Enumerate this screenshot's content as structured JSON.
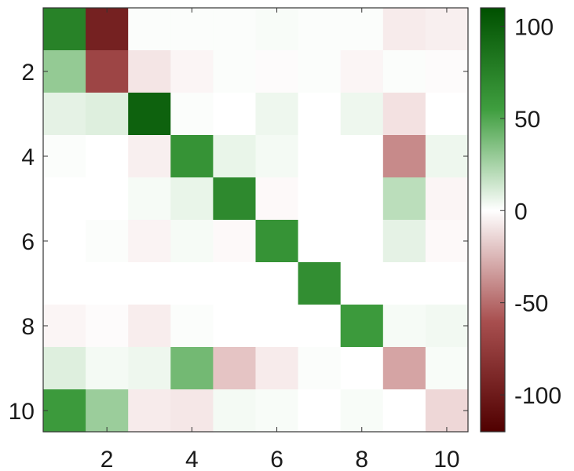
{
  "chart_data": {
    "type": "heatmap",
    "title": "",
    "xlabel": "",
    "ylabel": "",
    "rows": 10,
    "cols": 10,
    "x_ticks": [
      2,
      4,
      6,
      8,
      10
    ],
    "y_ticks": [
      2,
      4,
      6,
      8,
      10
    ],
    "x_tick_labels": [
      "2",
      "4",
      "6",
      "8",
      "10"
    ],
    "y_tick_labels": [
      "2",
      "4",
      "6",
      "8",
      "10"
    ],
    "values": [
      [
        82,
        -100,
        2,
        2,
        2,
        3,
        2,
        2,
        -10,
        -8
      ],
      [
        40,
        -78,
        -13,
        -5,
        2,
        -2,
        2,
        -5,
        2,
        -2
      ],
      [
        12,
        15,
        100,
        2,
        0,
        8,
        0,
        8,
        -15,
        0
      ],
      [
        2,
        0,
        -8,
        72,
        10,
        5,
        0,
        0,
        -50,
        8
      ],
      [
        0,
        0,
        4,
        10,
        78,
        -3,
        0,
        0,
        28,
        -5
      ],
      [
        0,
        2,
        -6,
        4,
        -3,
        72,
        0,
        0,
        12,
        -3
      ],
      [
        0,
        0,
        0,
        0,
        0,
        0,
        75,
        0,
        0,
        0
      ],
      [
        -5,
        -2,
        -9,
        2,
        0,
        0,
        0,
        68,
        4,
        6
      ],
      [
        15,
        5,
        8,
        50,
        -28,
        -10,
        2,
        0,
        -40,
        3
      ],
      [
        68,
        38,
        -10,
        -12,
        5,
        3,
        0,
        3,
        0,
        -20
      ]
    ],
    "colorbar": {
      "range": [
        -120,
        110
      ],
      "ticks": [
        100,
        50,
        0,
        -50,
        -100
      ],
      "tick_labels": [
        "100",
        "50",
        "0",
        "-50",
        "-100"
      ],
      "colors": {
        "max": "#005000",
        "mid": "#ffffff",
        "min": "#500000"
      }
    },
    "grid": false
  }
}
